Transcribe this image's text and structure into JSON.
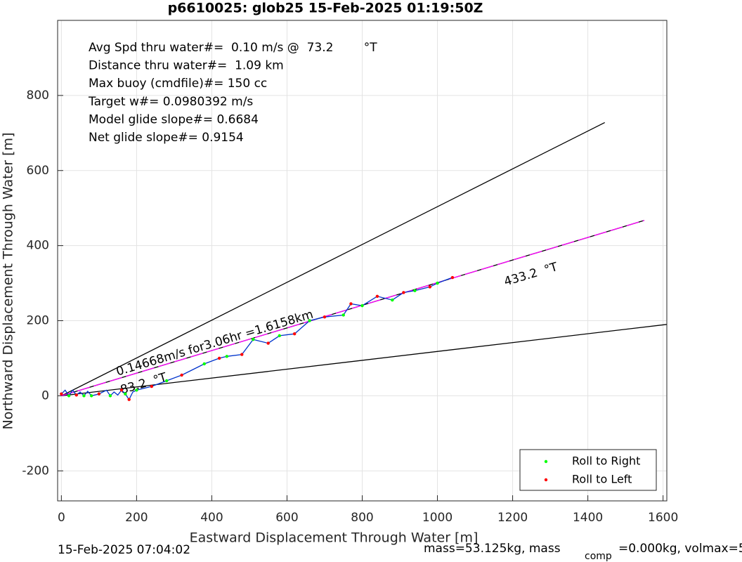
{
  "chart_data": {
    "type": "line",
    "title": "p6610025: glob25 15-Feb-2025 01:19:50Z",
    "xlabel": "Eastward Displacement Through Water [m]",
    "ylabel": "Northward Displacement Through Water [m]",
    "xlim": [
      -10,
      1610
    ],
    "ylim": [
      -280,
      1000
    ],
    "xticks": [
      0,
      200,
      400,
      600,
      800,
      1000,
      1200,
      1400,
      1600
    ],
    "yticks": [
      -200,
      0,
      200,
      400,
      600,
      800
    ],
    "grid": true,
    "legend_position": "southeast",
    "stats": [
      "Avg Spd thru water#=  0.10 m/s @  73.2        °T",
      "Distance thru water#=  1.09 km",
      "Max buoy (cmdfile)#= 150 cc",
      "Target w#= 0.0980392 m/s",
      "Model glide slope#= 0.6684",
      "Net glide slope#= 0.9154"
    ],
    "annotations": [
      "0.14668m/s for3.06hr =1.6158km",
      "433.2  °T",
      "83.2  °T"
    ],
    "footer": [
      "15-Feb-2025 07:04:02",
      "mass=53.125kg, mass",
      "comp",
      "=0.000kg, volmax=5"
    ],
    "reference_lines": [
      {
        "color": "#000000",
        "dashed": false,
        "x": [
          0,
          1445
        ],
        "y": [
          0,
          728
        ]
      },
      {
        "color": "#000000",
        "dashed": false,
        "x": [
          0,
          1610
        ],
        "y": [
          0,
          190
        ]
      },
      {
        "color": "#000000",
        "dashed": false,
        "x": [
          0,
          1550
        ],
        "y": [
          0,
          467
        ]
      },
      {
        "color": "#ff00ff",
        "dashed": true,
        "x": [
          0,
          1550
        ],
        "y": [
          0,
          467
        ]
      }
    ],
    "trajectory": {
      "color": "#0033cc",
      "x": [
        0,
        10,
        20,
        30,
        40,
        50,
        60,
        70,
        80,
        100,
        120,
        130,
        140,
        150,
        160,
        170,
        180,
        190,
        200,
        240,
        280,
        320,
        350,
        380,
        420,
        440,
        480,
        510,
        550,
        580,
        620,
        660,
        700,
        750,
        770,
        800,
        840,
        880,
        910,
        940,
        980,
        1000,
        1040
      ],
      "y": [
        5,
        15,
        0,
        15,
        2,
        10,
        0,
        12,
        0,
        5,
        15,
        0,
        10,
        2,
        15,
        5,
        -10,
        10,
        15,
        25,
        40,
        55,
        70,
        85,
        100,
        105,
        110,
        150,
        140,
        160,
        165,
        200,
        210,
        215,
        245,
        240,
        265,
        255,
        275,
        280,
        290,
        300,
        315
      ]
    },
    "series": [
      {
        "name": "Roll to Right",
        "color": "#00ff00",
        "x": [
          20,
          60,
          80,
          130,
          170,
          200,
          280,
          380,
          440,
          510,
          580,
          660,
          750,
          800,
          880,
          940,
          1000
        ],
        "y": [
          0,
          0,
          0,
          0,
          5,
          15,
          40,
          85,
          105,
          150,
          160,
          200,
          215,
          240,
          255,
          280,
          300
        ]
      },
      {
        "name": "Roll to Left",
        "color": "#ff0000",
        "x": [
          0,
          40,
          100,
          160,
          180,
          240,
          320,
          420,
          480,
          550,
          620,
          700,
          770,
          840,
          910,
          980,
          1040
        ],
        "y": [
          5,
          2,
          5,
          15,
          -10,
          25,
          55,
          100,
          110,
          140,
          165,
          210,
          245,
          265,
          275,
          290,
          315
        ]
      }
    ]
  }
}
